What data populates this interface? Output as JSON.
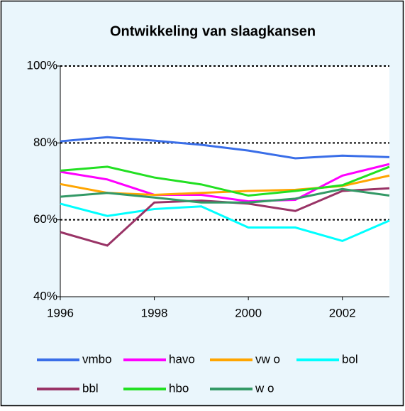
{
  "chart_data": {
    "type": "line",
    "title": "Ontwikkeling van slaagkansen",
    "x": [
      1996,
      1997,
      1998,
      1999,
      2000,
      2001,
      2002,
      2003
    ],
    "xlim": [
      1996,
      2003
    ],
    "xticks": [
      1996,
      1998,
      2000,
      2002
    ],
    "ylim": [
      40,
      100
    ],
    "yticks": [
      {
        "value": 40,
        "label": "40%"
      },
      {
        "value": 60,
        "label": "60%"
      },
      {
        "value": 80,
        "label": "80%"
      },
      {
        "value": 100,
        "label": "100%"
      }
    ],
    "grid": true,
    "series": [
      {
        "name": "vmbo",
        "color": "#3a6ee8",
        "values": [
          80.4,
          81.5,
          80.6,
          79.5,
          78,
          76,
          76.7,
          76.3
        ]
      },
      {
        "name": "havo",
        "color": "#ff00ff",
        "values": [
          72.5,
          70.5,
          66.5,
          66.5,
          64.8,
          65.2,
          71.5,
          74.5
        ]
      },
      {
        "name": "vw o",
        "color": "#ffa500",
        "values": [
          69.3,
          67,
          66.5,
          67,
          67.5,
          67.8,
          68.8,
          71.5
        ]
      },
      {
        "name": "bol",
        "color": "#00ffff",
        "values": [
          64.2,
          61,
          62.8,
          63.5,
          58,
          58,
          54.5,
          59.8
        ]
      },
      {
        "name": "bbl",
        "color": "#993366",
        "values": [
          56.8,
          53.3,
          64.5,
          65,
          64.2,
          62.3,
          67.5,
          68.2
        ]
      },
      {
        "name": "hbo",
        "color": "#22e022",
        "values": [
          72.8,
          73.8,
          71,
          69.2,
          66.3,
          67.5,
          69,
          73.8
        ]
      },
      {
        "name": "w o",
        "color": "#339966",
        "values": [
          66,
          67,
          65.8,
          64.5,
          64.5,
          65.5,
          68,
          66.3
        ]
      }
    ]
  }
}
